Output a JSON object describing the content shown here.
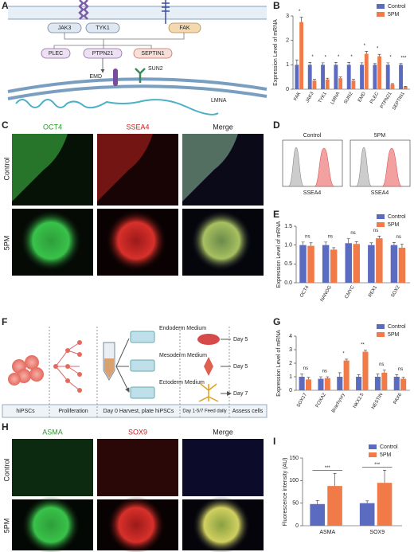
{
  "panels": {
    "labels": [
      "A",
      "B",
      "C",
      "D",
      "E",
      "F",
      "G",
      "H",
      "I"
    ]
  },
  "diagram_a": {
    "labels": [
      "JAK3",
      "TYK1",
      "FAK",
      "PLEC",
      "PTPN21",
      "SEPTIN1",
      "EMD",
      "SUN2",
      "LMNA"
    ]
  },
  "panel_c": {
    "columns": [
      "OCT4",
      "SSEA4",
      "Merge"
    ],
    "rows": [
      "Control",
      "5PM"
    ]
  },
  "panel_d": {
    "titles": [
      "Control",
      "5PM"
    ],
    "xlabel": "SSEA4"
  },
  "panel_f": {
    "steps": [
      "hiPSCs",
      "Proliferation",
      "Day 0 Harvest, plate hiPSCs",
      "Day 1-5/7 Feed daily",
      "Assess cells"
    ],
    "media": [
      "Endoderm Medium",
      "Mesoderm Medium",
      "Ectoderm Medium"
    ],
    "days": [
      "Day 5",
      "Day 5",
      "Day 7"
    ]
  },
  "panel_h": {
    "columns": [
      "ASMA",
      "SOX9",
      "Merge"
    ],
    "rows": [
      "Control",
      "5PM"
    ]
  },
  "chart_data": [
    {
      "type": "bar",
      "ylabel": "Expression Level of mRNA",
      "categories": [
        "FAK",
        "JAK3",
        "TYK1",
        "LMNA",
        "SUN2",
        "EMD",
        "PLEC",
        "PTPN21",
        "SEPTIN1"
      ],
      "series": [
        {
          "name": "Control",
          "color": "#5b6bc0",
          "values": [
            1.0,
            1.0,
            1.0,
            1.0,
            1.0,
            1.0,
            1.0,
            1.0,
            1.0
          ],
          "errors": [
            0.2,
            0.1,
            0.08,
            0.1,
            0.1,
            0.08,
            0.05,
            0.08,
            0.05
          ]
        },
        {
          "name": "5PM",
          "color": "#f07b48",
          "values": [
            2.75,
            0.35,
            0.4,
            0.45,
            0.35,
            1.45,
            1.35,
            0.2,
            0.1
          ],
          "errors": [
            0.2,
            0.05,
            0.05,
            0.05,
            0.05,
            0.1,
            0.08,
            0.03,
            0.02
          ]
        }
      ],
      "annotations": [
        "*",
        "*",
        "*",
        "*",
        "*",
        "*",
        "*",
        "*",
        "***"
      ],
      "ylim": [
        0,
        3
      ],
      "yticks": [
        0,
        1,
        2,
        3
      ]
    },
    {
      "type": "bar",
      "ylabel": "Expression Level of mRNA",
      "categories": [
        "OCT4",
        "NANOG",
        "CMYC",
        "REX1",
        "SOX2"
      ],
      "series": [
        {
          "name": "Control",
          "color": "#5b6bc0",
          "values": [
            1.0,
            1.0,
            1.05,
            1.0,
            1.0
          ],
          "errors": [
            0.08,
            0.08,
            0.12,
            0.06,
            0.07
          ]
        },
        {
          "name": "5PM",
          "color": "#f07b48",
          "values": [
            0.98,
            0.88,
            1.03,
            1.18,
            0.93
          ],
          "errors": [
            0.08,
            0.05,
            0.06,
            0.06,
            0.1
          ]
        }
      ],
      "annotations": [
        "ns",
        "ns",
        "ns",
        "ns",
        "ns"
      ],
      "ylim": [
        0,
        1.5
      ],
      "yticks": [
        {
          "value": 0,
          "label": "0.0"
        },
        0.5,
        {
          "value": 1,
          "label": "1.0"
        },
        1.5
      ]
    },
    {
      "type": "bar",
      "ylabel": "Expression Level of mRNA",
      "categories": [
        "SOX17",
        "FOXA2",
        "Brachyury",
        "NKX2.5",
        "NESTIN",
        "PAX6"
      ],
      "series": [
        {
          "name": "Control",
          "color": "#5b6bc0",
          "values": [
            1.0,
            0.85,
            1.0,
            1.0,
            1.0,
            1.0
          ],
          "errors": [
            0.2,
            0.15,
            0.3,
            0.15,
            0.2,
            0.15
          ]
        },
        {
          "name": "5PM",
          "color": "#f07b48",
          "values": [
            0.8,
            0.9,
            2.2,
            2.85,
            1.3,
            0.85
          ],
          "errors": [
            0.15,
            0.1,
            0.1,
            0.1,
            0.2,
            0.1
          ]
        }
      ],
      "annotations": [
        "ns",
        "ns",
        "*",
        "**",
        "ns",
        "ns"
      ],
      "ylim": [
        0,
        4
      ],
      "yticks": [
        0,
        1,
        2,
        3,
        4
      ]
    },
    {
      "type": "bar",
      "ylabel": "Fluorescence intensity (AU)",
      "categories": [
        "ASMA",
        "SOX9"
      ],
      "series": [
        {
          "name": "Control",
          "color": "#5b6bc0",
          "values": [
            48,
            50
          ],
          "errors": [
            8,
            5
          ]
        },
        {
          "name": "5PM",
          "color": "#f07b48",
          "values": [
            88,
            95
          ],
          "errors": [
            28,
            28
          ]
        }
      ],
      "annotations": [
        "***",
        "***"
      ],
      "ylim": [
        0,
        150
      ],
      "yticks": [
        0,
        50,
        100,
        150
      ]
    }
  ]
}
